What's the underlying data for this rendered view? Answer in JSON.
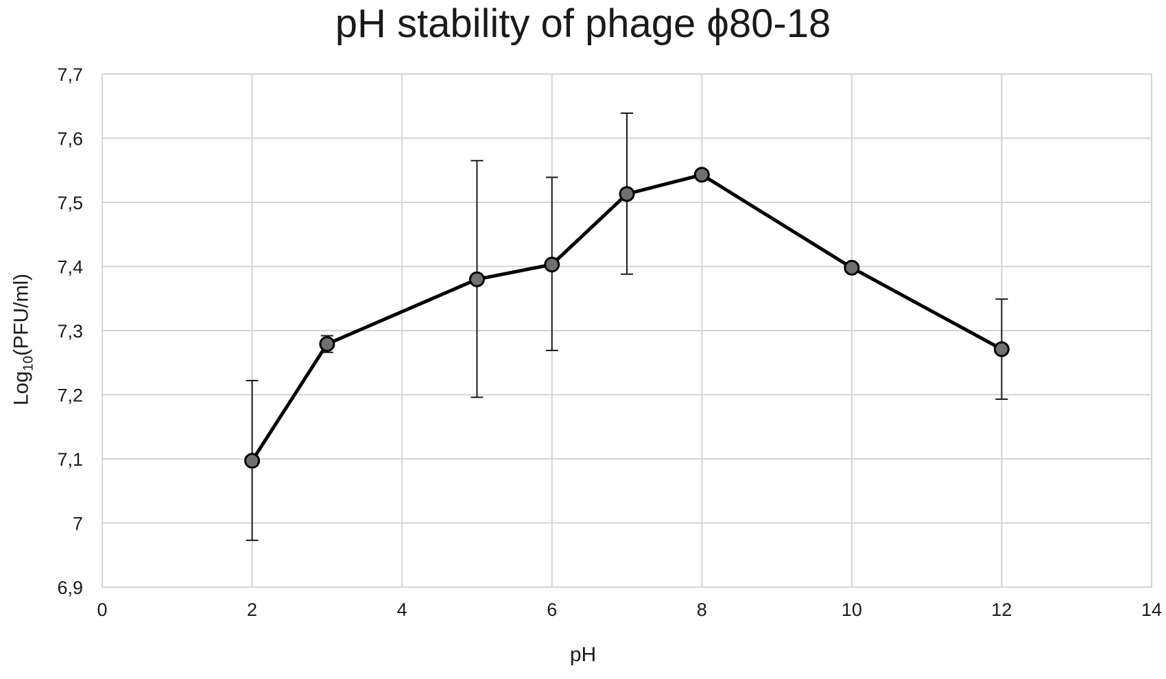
{
  "chart_data": {
    "type": "line",
    "title": "pH stability of phage ϕ80-18",
    "xlabel": "pH",
    "ylabel": {
      "prefix": "Log",
      "subscript": "10",
      "suffix": "(PFU/ml)"
    },
    "xlim": [
      0,
      14
    ],
    "ylim": [
      6.9,
      7.7
    ],
    "x_ticks": [
      0,
      2,
      4,
      6,
      8,
      10,
      12,
      14
    ],
    "x_tick_labels": [
      "0",
      "2",
      "4",
      "6",
      "8",
      "10",
      "12",
      "14"
    ],
    "y_ticks": [
      6.9,
      7.0,
      7.1,
      7.2,
      7.3,
      7.4,
      7.5,
      7.6,
      7.7
    ],
    "y_tick_labels": [
      "6,9",
      "7",
      "7,1",
      "7,2",
      "7,3",
      "7,4",
      "7,5",
      "7,6",
      "7,7"
    ],
    "grid": true,
    "line_color": "#000000",
    "marker_color": "#707070",
    "grid_color": "#d4d4d4",
    "series": [
      {
        "x": [
          2,
          3,
          5,
          6,
          7,
          8,
          10,
          12
        ],
        "y": [
          7.097,
          7.279,
          7.38,
          7.403,
          7.513,
          7.543,
          7.398,
          7.271
        ],
        "error_upper": [
          7.222,
          7.292,
          7.565,
          7.539,
          7.639,
          7.543,
          7.398,
          7.349
        ],
        "error_lower": [
          6.973,
          7.266,
          7.196,
          7.269,
          7.388,
          7.543,
          7.398,
          7.193
        ]
      }
    ]
  }
}
